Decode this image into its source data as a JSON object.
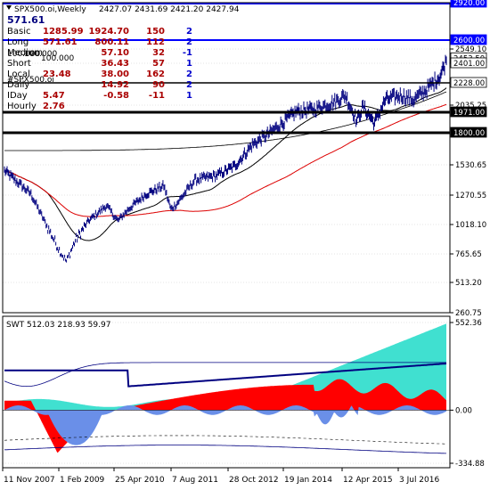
{
  "header": {
    "symbol": "SPX500.oi,Weekly",
    "ohlc": "2427.07 2431.69 2421.20 2427.94",
    "value": "571.61"
  },
  "stats": [
    {
      "label": "Basic",
      "a": "1285.99",
      "b": "1924.70",
      "c": "150",
      "d": "2"
    },
    {
      "label": "Long",
      "a": "571.61",
      "b": "800.11",
      "c": "112",
      "d": "2"
    },
    {
      "label": "Medium",
      "a": "",
      "b": "57.10",
      "c": "32",
      "d": "-1"
    },
    {
      "label": "Short",
      "a": "",
      "b": "36.43",
      "c": "57",
      "d": "1"
    },
    {
      "label": "Local",
      "a": "23.48",
      "b": "38.00",
      "c": "162",
      "d": "2"
    },
    {
      "label": "Daily",
      "a": "",
      "b": "14.92",
      "c": "90",
      "d": "2"
    },
    {
      "label": "IDay",
      "a": "5.47",
      "b": "-0.58",
      "c": "-11",
      "d": "1"
    },
    {
      "label": "Hourly",
      "a": "2.76",
      "b": "",
      "c": "",
      "d": ""
    }
  ],
  "overlap_texts": [
    "100.000",
    "100.000",
    "100.000",
    "#SPX500.oi"
  ],
  "hlines": [
    {
      "label": "2600.00",
      "value": 2600
    },
    {
      "label": "1971.00",
      "value": 1971
    },
    {
      "label": "1800.00",
      "value": 1800
    },
    {
      "label": "2228.00",
      "value": 2228
    }
  ],
  "upper_axis": {
    "ticks": [
      "2920.00",
      "2549.10",
      "2401.00",
      "2035.25",
      "1530.65",
      "1270.55",
      "1018.10",
      "765.65",
      "513.20",
      "260.75"
    ]
  },
  "price_tags": [
    {
      "label": "2920.00",
      "box": "blue"
    },
    {
      "label": "2600.00",
      "box": "blue"
    },
    {
      "label": "2453.50",
      "box": "plain"
    },
    {
      "label": "2401.00",
      "box": "plain"
    },
    {
      "label": "2228.00",
      "box": "plain"
    },
    {
      "label": "1971.00",
      "box": "black"
    },
    {
      "label": "1800.00",
      "box": "black"
    }
  ],
  "lower": {
    "title": "SWT 512.03 218.93 59.97",
    "ticks": [
      "552.36",
      "0.00",
      "-334.88"
    ]
  },
  "x_labels": [
    "11 Nov 2007",
    "1 Feb 2009",
    "25 Apr 2010",
    "7 Aug 2011",
    "28 Oct 2012",
    "19 Jan 2014",
    "12 Apr 2015",
    "3 Jul 2016"
  ],
  "colors": {
    "price": "#00007f",
    "blue": "#0000ff",
    "navy": "#000080",
    "red": "#dd0000",
    "teal": "#40e0d0",
    "cornflower": "#6a8fe8",
    "statsBlue": "#0000cc",
    "statsRed": "#aa0000"
  },
  "chart_data": {
    "type": "line",
    "title": "SPX500.oi,Weekly",
    "xlabel": "",
    "ylabel": "",
    "ylim": [
      260.75,
      2920
    ],
    "x": [
      "11 Nov 2007",
      "1 Feb 2009",
      "25 Apr 2010",
      "7 Aug 2011",
      "28 Oct 2012",
      "19 Jan 2014",
      "12 Apr 2015",
      "3 Jul 2016"
    ],
    "series": [
      {
        "name": "SPX500.oi",
        "values": [
          1480,
          800,
          1200,
          1180,
          1420,
          1840,
          2080,
          2110
        ]
      }
    ],
    "oscillator": {
      "name": "SWT",
      "ylim": [
        -334.88,
        552.36
      ],
      "values": [
        512.03,
        218.93,
        59.97
      ]
    }
  }
}
